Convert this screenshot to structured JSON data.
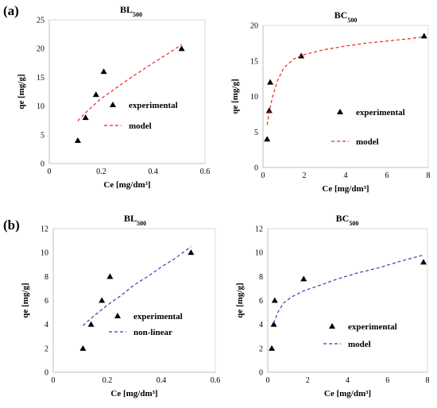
{
  "panels": [
    {
      "label": "(a)"
    },
    {
      "label": "(b)"
    }
  ],
  "chart_data": [
    {
      "type": "scatter",
      "title": "BL",
      "title_sub": "500",
      "xlabel": "Ce [mg/dm³]",
      "ylabel": "qe [mg/g]",
      "xlim": [
        0,
        0.6
      ],
      "xticks": [
        0,
        0.2,
        0.4,
        0.6
      ],
      "xtick_labels": [
        "0",
        "0.2",
        "0.4",
        "0.6"
      ],
      "ylim": [
        0,
        25
      ],
      "yticks": [
        0,
        5,
        10,
        15,
        20,
        25
      ],
      "ytick_labels": [
        "0",
        "5",
        "10",
        "15",
        "20",
        "25"
      ],
      "grid": false,
      "legend_position": "center-right",
      "series": [
        {
          "name": "experimental",
          "kind": "markers",
          "marker": "triangle",
          "color": "#000000",
          "x": [
            0.11,
            0.14,
            0.18,
            0.21,
            0.51
          ],
          "y": [
            4,
            8,
            12,
            16,
            20
          ]
        },
        {
          "name": "model",
          "kind": "dashed-line",
          "color": "#e8281e",
          "x": [
            0.11,
            0.15,
            0.2,
            0.25,
            0.3,
            0.35,
            0.4,
            0.45,
            0.51
          ],
          "y": [
            7.4,
            9.3,
            11.3,
            12.9,
            14.5,
            16.0,
            17.5,
            18.9,
            20.7
          ]
        }
      ]
    },
    {
      "type": "scatter",
      "title": "BC",
      "title_sub": "500",
      "xlabel": "Ce [mg/dm³]",
      "ylabel": "qe [mg/g]",
      "xlim": [
        0,
        8
      ],
      "xticks": [
        0,
        2,
        4,
        6,
        8
      ],
      "xtick_labels": [
        "0",
        "2",
        "4",
        "6",
        "8"
      ],
      "ylim": [
        0,
        20
      ],
      "yticks": [
        0,
        5,
        10,
        15,
        20
      ],
      "ytick_labels": [
        "0",
        "5",
        "10",
        "15",
        "20"
      ],
      "grid": false,
      "legend_position": "center-right",
      "series": [
        {
          "name": "experimental",
          "kind": "markers",
          "marker": "triangle",
          "color": "#000000",
          "x": [
            0.2,
            0.3,
            0.35,
            1.85,
            7.8
          ],
          "y": [
            4,
            8,
            12,
            15.7,
            18.5
          ]
        },
        {
          "name": "model",
          "kind": "dashed-line",
          "color": "#e8281e",
          "x": [
            0.2,
            0.3,
            0.45,
            0.7,
            1.0,
            1.5,
            2.0,
            3.0,
            4.0,
            5.0,
            6.0,
            7.0,
            7.8
          ],
          "y": [
            6.0,
            7.8,
            9.8,
            12.2,
            14.0,
            15.3,
            15.9,
            16.6,
            17.1,
            17.5,
            17.8,
            18.1,
            18.4
          ]
        }
      ]
    },
    {
      "type": "scatter",
      "title": "BL",
      "title_sub": "500",
      "xlabel": "Ce [mg/dm³]",
      "ylabel": "qe [mg/g]",
      "xlim": [
        0,
        0.6
      ],
      "xticks": [
        0,
        0.2,
        0.4,
        0.6
      ],
      "xtick_labels": [
        "0",
        "0.2",
        "0.4",
        "0.6"
      ],
      "ylim": [
        0,
        12
      ],
      "yticks": [
        0,
        2,
        4,
        6,
        8,
        10,
        12
      ],
      "ytick_labels": [
        "0",
        "2",
        "4",
        "6",
        "8",
        "10",
        "12"
      ],
      "grid": false,
      "legend_position": "bottom-right",
      "series": [
        {
          "name": "experimental",
          "kind": "markers",
          "marker": "triangle",
          "color": "#000000",
          "x": [
            0.11,
            0.14,
            0.18,
            0.21,
            0.51
          ],
          "y": [
            2,
            4,
            6,
            8,
            10
          ]
        },
        {
          "name": "non-linear",
          "kind": "dashed-line",
          "color": "#3b3bb0",
          "x": [
            0.11,
            0.15,
            0.2,
            0.25,
            0.3,
            0.35,
            0.4,
            0.45,
            0.51
          ],
          "y": [
            3.9,
            4.7,
            5.6,
            6.4,
            7.3,
            8.0,
            8.8,
            9.5,
            10.5
          ]
        }
      ]
    },
    {
      "type": "scatter",
      "title": "BC",
      "title_sub": "500",
      "xlabel": "Ce [mg/dm³]",
      "ylabel": "qe [mg/g]",
      "xlim": [
        0,
        8
      ],
      "xticks": [
        0,
        2,
        4,
        6,
        8
      ],
      "xtick_labels": [
        "0",
        "2",
        "4",
        "6",
        "8"
      ],
      "ylim": [
        0,
        12
      ],
      "yticks": [
        0,
        2,
        4,
        6,
        8,
        10,
        12
      ],
      "ytick_labels": [
        "0",
        "2",
        "4",
        "6",
        "8",
        "10",
        "12"
      ],
      "grid": false,
      "legend_position": "bottom-right",
      "series": [
        {
          "name": "experimental",
          "kind": "markers",
          "marker": "triangle",
          "color": "#000000",
          "x": [
            0.2,
            0.3,
            0.35,
            1.8,
            7.8
          ],
          "y": [
            2,
            4,
            6,
            7.8,
            9.2
          ]
        },
        {
          "name": "model",
          "kind": "dashed-line",
          "color": "#3b3bb0",
          "x": [
            0.3,
            0.5,
            0.8,
            1.2,
            1.8,
            2.5,
            3.5,
            4.5,
            5.5,
            6.5,
            7.8
          ],
          "y": [
            4.1,
            5.0,
            5.8,
            6.3,
            6.8,
            7.2,
            7.8,
            8.3,
            8.7,
            9.2,
            9.8
          ]
        }
      ]
    }
  ]
}
